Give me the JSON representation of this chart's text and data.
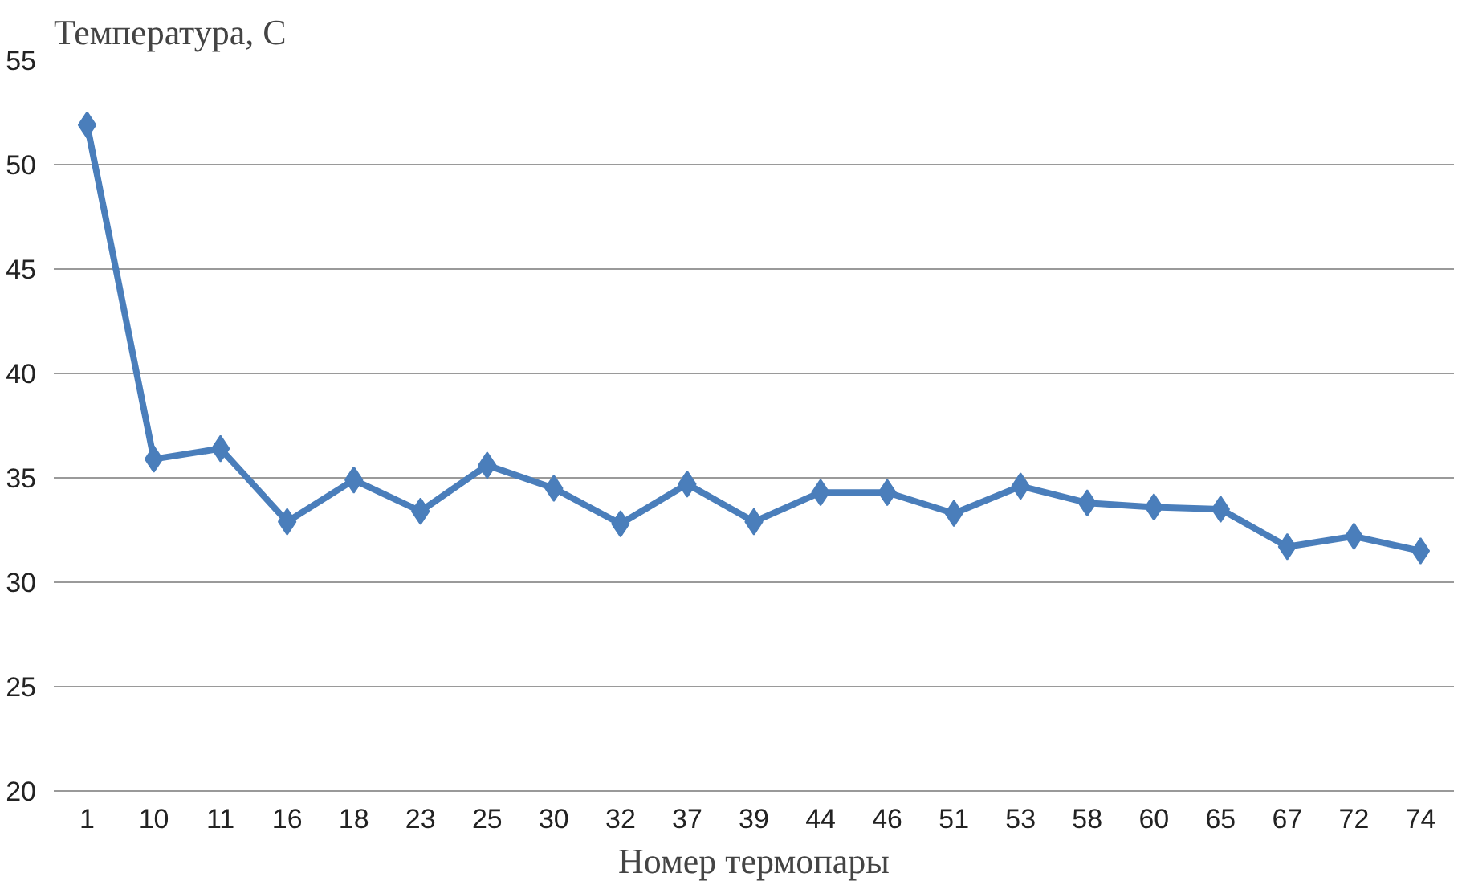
{
  "chart_data": {
    "type": "line",
    "ylabel": "Температура, С",
    "xlabel": "Номер термопары",
    "categories": [
      "1",
      "10",
      "11",
      "16",
      "18",
      "23",
      "25",
      "30",
      "32",
      "37",
      "39",
      "44",
      "46",
      "51",
      "53",
      "58",
      "60",
      "65",
      "67",
      "72",
      "74"
    ],
    "series": [
      {
        "color": "#4a7ebb",
        "values": [
          51.9,
          35.9,
          36.4,
          32.9,
          34.9,
          33.4,
          35.6,
          34.5,
          32.8,
          34.7,
          32.9,
          34.3,
          34.3,
          33.3,
          34.6,
          33.8,
          33.6,
          33.5,
          31.7,
          32.2,
          31.5
        ]
      }
    ],
    "ylim": [
      20,
      55
    ],
    "yticks": [
      20,
      25,
      30,
      35,
      40,
      45,
      50,
      55
    ],
    "grid": "y",
    "marker": "diamond",
    "line_style": "solid"
  }
}
